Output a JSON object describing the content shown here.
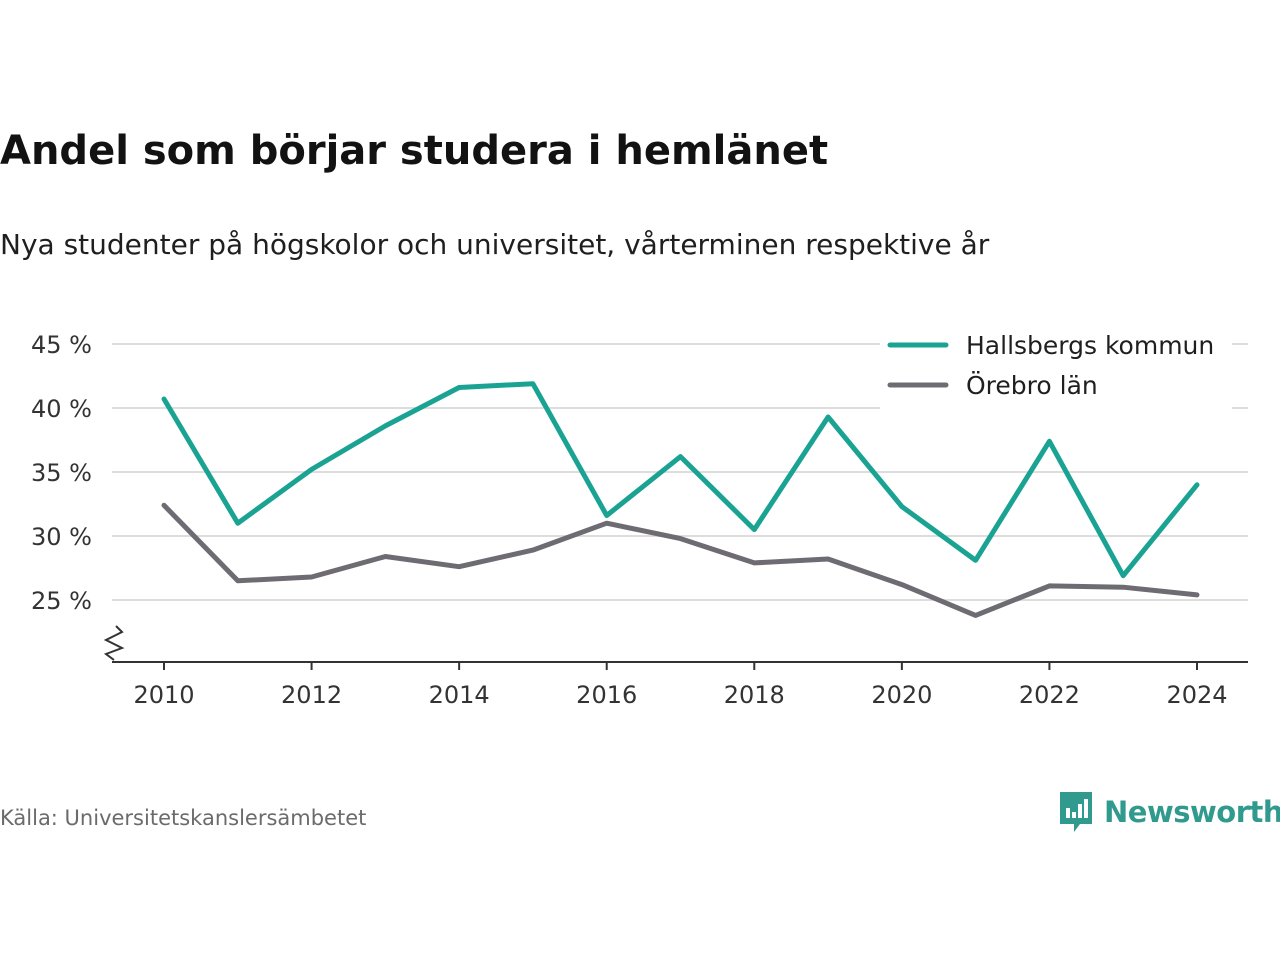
{
  "header": {
    "title": "Andel som börjar studera i hemlänet",
    "subtitle": "Nya studenter på högskolor och universitet, vårterminen respektive år"
  },
  "footer": {
    "source": "Källa: Universitetskanslersämbetet",
    "brand": "Newsworthy"
  },
  "colors": {
    "series_1": "#1aa393",
    "series_2": "#6e6c72",
    "grid": "#dddddd",
    "axis": "#333333",
    "brand": "#2f9a8d"
  },
  "chart_data": {
    "type": "line",
    "x": [
      2010,
      2011,
      2012,
      2013,
      2014,
      2015,
      2016,
      2017,
      2018,
      2019,
      2020,
      2021,
      2022,
      2023,
      2024
    ],
    "xticks": [
      2010,
      2012,
      2014,
      2016,
      2018,
      2020,
      2022,
      2024
    ],
    "yticks": [
      25,
      30,
      35,
      40,
      45
    ],
    "ytick_suffix": " %",
    "ylim": [
      20,
      45
    ],
    "xlim": [
      2009.3,
      2024.7
    ],
    "grid": true,
    "axis_break": true,
    "legend_position": "top-right",
    "series": [
      {
        "name": "Hallsbergs kommun",
        "values": [
          40.7,
          31.0,
          35.2,
          38.6,
          41.6,
          41.9,
          31.6,
          36.2,
          30.5,
          39.3,
          32.3,
          28.1,
          37.4,
          26.9,
          34.0
        ]
      },
      {
        "name": "Örebro län",
        "values": [
          32.4,
          26.5,
          26.8,
          28.4,
          27.6,
          28.9,
          31.0,
          29.8,
          27.9,
          28.2,
          26.2,
          23.8,
          26.1,
          26.0,
          25.4
        ]
      }
    ]
  }
}
